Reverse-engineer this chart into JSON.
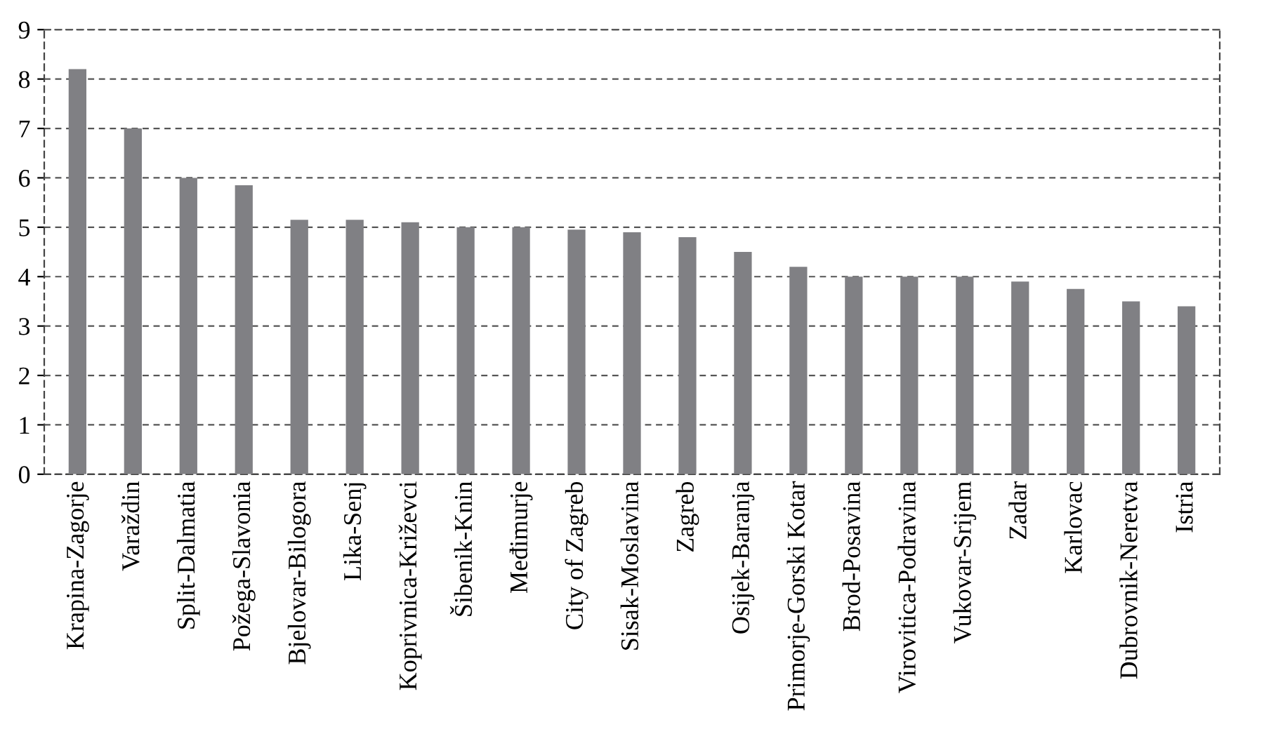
{
  "chart_data": {
    "type": "bar",
    "categories": [
      "Krapina-Zagorje",
      "Varaždin",
      "Split-Dalmatia",
      "Požega-Slavonia",
      "Bjelovar-Bilogora",
      "Lika-Senj",
      "Koprivnica-Križevci",
      "Šibenik-Knin",
      "Međimurje",
      "City of Zagreb",
      "Sisak-Moslavina",
      "Zagreb",
      "Osijek-Baranja",
      "Primorje-Gorski Kotar",
      "Brod-Posavina",
      "Virovitica-Podravina",
      "Vukovar-Srijem",
      "Zadar",
      "Karlovac",
      "Dubrovnik-Neretva",
      "Istria"
    ],
    "values": [
      8.2,
      7.0,
      6.0,
      5.85,
      5.15,
      5.15,
      5.1,
      5.0,
      5.0,
      4.95,
      4.9,
      4.8,
      4.5,
      4.2,
      4.0,
      4.0,
      4.0,
      3.9,
      3.75,
      3.5,
      3.4
    ],
    "color": "#808084",
    "ylim": [
      0,
      9
    ],
    "yticks": [
      0,
      1,
      2,
      3,
      4,
      5,
      6,
      7,
      8,
      9
    ],
    "grid": "y",
    "line_style": "dashed"
  }
}
